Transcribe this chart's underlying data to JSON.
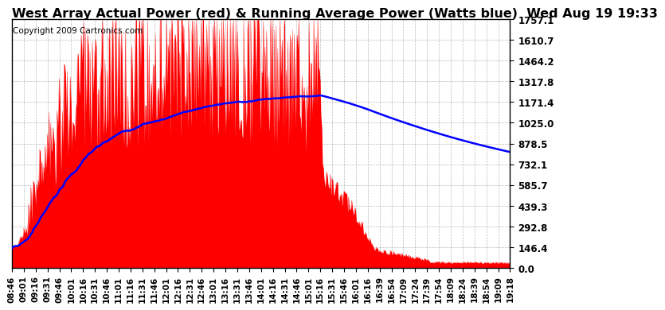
{
  "title": "West Array Actual Power (red) & Running Average Power (Watts blue)  Wed Aug 19 19:33",
  "copyright": "Copyright 2009 Cartronics.com",
  "yticks": [
    0.0,
    146.4,
    292.8,
    439.3,
    585.7,
    732.1,
    878.5,
    1025.0,
    1171.4,
    1317.8,
    1464.2,
    1610.7,
    1757.1
  ],
  "ymax": 1757.1,
  "ymin": 0.0,
  "bar_color": "#FF0000",
  "avg_color": "#0000FF",
  "background_color": "#FFFFFF",
  "grid_color": "#AAAAAA",
  "title_fontsize": 11.5,
  "copyright_fontsize": 7.5,
  "tick_fontsize": 8.5,
  "xtick_labels": [
    "08:46",
    "09:01",
    "09:16",
    "09:31",
    "09:46",
    "10:01",
    "10:16",
    "10:31",
    "10:46",
    "11:01",
    "11:16",
    "11:31",
    "11:46",
    "12:01",
    "12:16",
    "12:31",
    "12:46",
    "13:01",
    "13:16",
    "13:31",
    "13:46",
    "14:01",
    "14:16",
    "14:31",
    "14:46",
    "15:01",
    "15:16",
    "15:31",
    "15:46",
    "16:01",
    "16:16",
    "16:39",
    "16:54",
    "17:09",
    "17:24",
    "17:39",
    "17:54",
    "18:09",
    "18:24",
    "18:39",
    "18:54",
    "19:09",
    "19:18"
  ]
}
